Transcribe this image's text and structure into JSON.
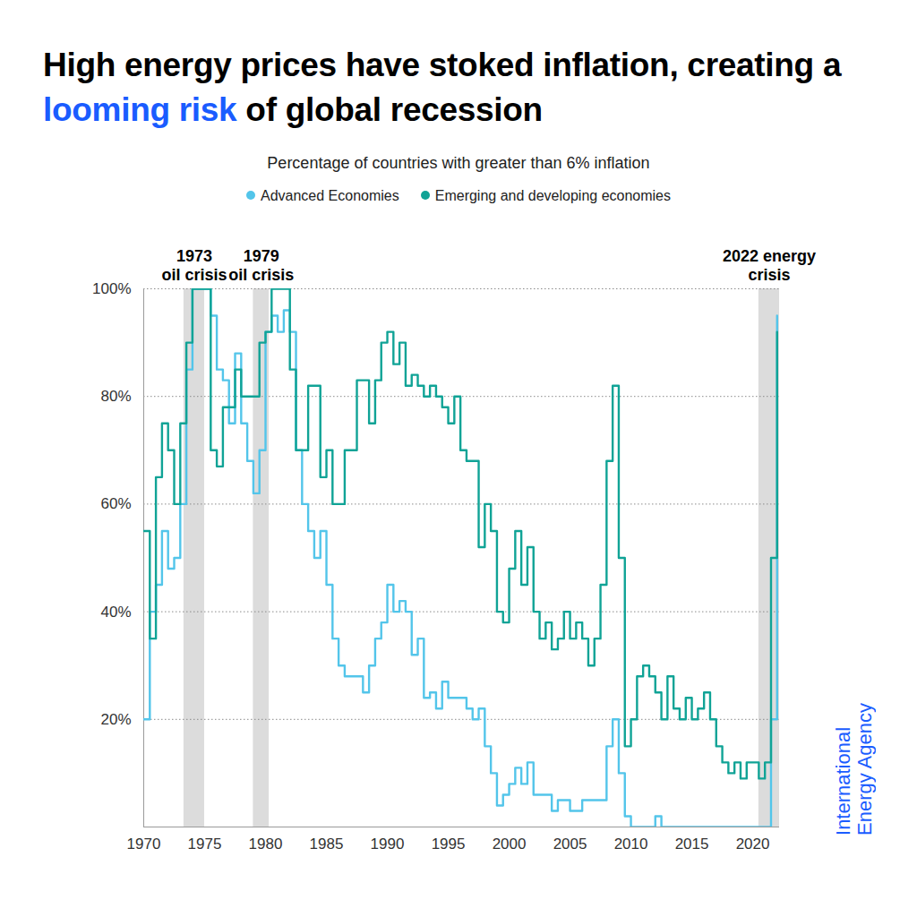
{
  "chart_data": {
    "type": "line",
    "title": "High energy prices have stoked inflation, creating a looming risk of global recession",
    "title_highlight": "looming risk",
    "subtitle": "Percentage of countries with greater than 6% inflation",
    "source": "International\nEnergy Agency",
    "legend": "top",
    "grid": true,
    "x": [
      1970,
      1970.5,
      1971,
      1971.5,
      1972,
      1972.5,
      1973,
      1973.5,
      1974,
      1974.5,
      1975,
      1975.5,
      1976,
      1976.5,
      1977,
      1977.5,
      1978,
      1978.5,
      1979,
      1979.5,
      1980,
      1980.5,
      1981,
      1981.5,
      1982,
      1982.5,
      1983,
      1983.5,
      1984,
      1984.5,
      1985,
      1985.5,
      1986,
      1986.5,
      1987,
      1987.5,
      1988,
      1988.5,
      1989,
      1989.5,
      1990,
      1990.5,
      1991,
      1991.5,
      1992,
      1992.5,
      1993,
      1993.5,
      1994,
      1994.5,
      1995,
      1995.5,
      1996,
      1996.5,
      1997,
      1997.5,
      1998,
      1998.5,
      1999,
      1999.5,
      2000,
      2000.5,
      2001,
      2001.5,
      2002,
      2002.5,
      2003,
      2003.5,
      2004,
      2004.5,
      2005,
      2005.5,
      2006,
      2006.5,
      2007,
      2007.5,
      2008,
      2008.5,
      2009,
      2009.5,
      2010,
      2010.5,
      2011,
      2011.5,
      2012,
      2012.5,
      2013,
      2013.5,
      2014,
      2014.5,
      2015,
      2015.5,
      2016,
      2016.5,
      2017,
      2017.5,
      2018,
      2018.5,
      2019,
      2019.5,
      2020,
      2020.5,
      2021,
      2021.5,
      2022
    ],
    "series": [
      {
        "name": "Advanced Economies",
        "color": "#53c5ea",
        "values": [
          20,
          40,
          45,
          55,
          48,
          50,
          60,
          85,
          100,
          100,
          100,
          95,
          85,
          83,
          75,
          88,
          75,
          68,
          62,
          70,
          92,
          95,
          92,
          96,
          92,
          70,
          60,
          55,
          50,
          55,
          45,
          35,
          30,
          28,
          28,
          28,
          25,
          30,
          35,
          38,
          45,
          40,
          42,
          40,
          32,
          35,
          24,
          25,
          22,
          27,
          24,
          24,
          24,
          22,
          20,
          22,
          15,
          10,
          4,
          6,
          8,
          11,
          8,
          12,
          6,
          6,
          6,
          3,
          5,
          5,
          3,
          3,
          5,
          5,
          5,
          5,
          15,
          20,
          10,
          2,
          0,
          0,
          0,
          0,
          2,
          0,
          0,
          0,
          0,
          0,
          0,
          0,
          0,
          0,
          0,
          0,
          0,
          0,
          0,
          0,
          0,
          0,
          0,
          20,
          95
        ]
      },
      {
        "name": "Emerging and developing economies",
        "color": "#10a396",
        "values": [
          55,
          35,
          65,
          75,
          70,
          60,
          75,
          90,
          100,
          100,
          100,
          70,
          67,
          78,
          78,
          85,
          80,
          80,
          80,
          90,
          92,
          100,
          100,
          100,
          85,
          70,
          70,
          82,
          82,
          65,
          70,
          60,
          60,
          70,
          70,
          83,
          83,
          75,
          83,
          90,
          92,
          86,
          90,
          82,
          84,
          82,
          80,
          82,
          80,
          78,
          75,
          80,
          70,
          68,
          68,
          52,
          60,
          55,
          40,
          38,
          48,
          55,
          45,
          52,
          40,
          35,
          38,
          33,
          35,
          40,
          35,
          38,
          35,
          30,
          35,
          45,
          68,
          82,
          50,
          15,
          20,
          28,
          30,
          28,
          25,
          20,
          28,
          22,
          20,
          24,
          20,
          22,
          25,
          20,
          15,
          12,
          10,
          12,
          9,
          12,
          12,
          9,
          12,
          50,
          92
        ]
      }
    ],
    "xlim": [
      1970,
      2022.2
    ],
    "xticks": [
      1970,
      1975,
      1980,
      1985,
      1990,
      1995,
      2000,
      2005,
      2010,
      2015,
      2020
    ],
    "ylim": [
      0,
      100
    ],
    "yticks": [
      {
        "value": 20,
        "label": "20%"
      },
      {
        "value": 40,
        "label": "40%"
      },
      {
        "value": 60,
        "label": "60%"
      },
      {
        "value": 80,
        "label": "80%"
      },
      {
        "value": 100,
        "label": "100%"
      }
    ],
    "bands": [
      {
        "label": "1973\noil crisis",
        "start": 1973.3,
        "end": 1975.0
      },
      {
        "label": "1979\noil crisis",
        "start": 1979.0,
        "end": 1980.3
      },
      {
        "label": "2022 energy\ncrisis",
        "start": 2020.5,
        "end": 2022.2
      }
    ]
  }
}
